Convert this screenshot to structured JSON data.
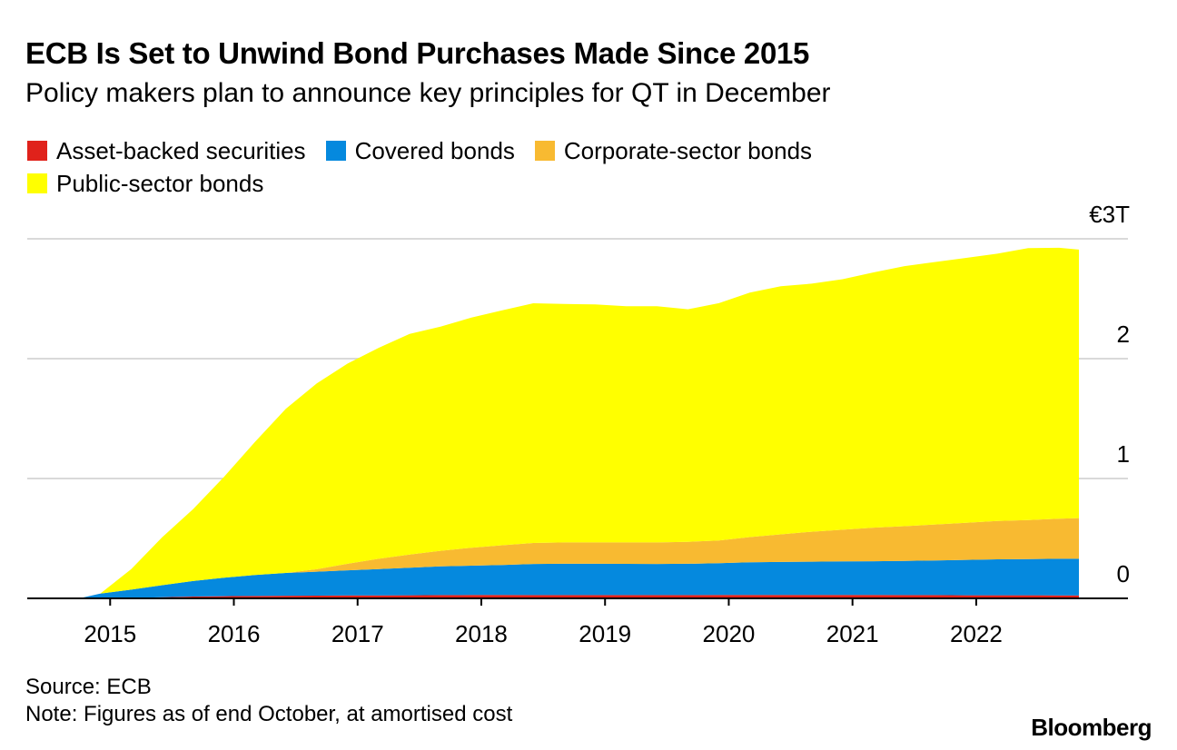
{
  "header": {
    "title": "ECB Is Set to Unwind Bond Purchases Made Since 2015",
    "subtitle": "Policy makers plan to announce key principles for QT in December"
  },
  "legend": {
    "items": [
      {
        "label": "Asset-backed securities",
        "color": "#e0221b"
      },
      {
        "label": "Covered bonds",
        "color": "#0589de"
      },
      {
        "label": "Corporate-sector bonds",
        "color": "#f8ba31"
      },
      {
        "label": "Public-sector bonds",
        "color": "#ffff00"
      }
    ]
  },
  "footer": {
    "source": "Source: ECB",
    "note": "Note: Figures as of end October, at amortised cost",
    "brand": "Bloomberg"
  },
  "chart_data": {
    "type": "area",
    "stacked": true,
    "title": "ECB Is Set to Unwind Bond Purchases Made Since 2015",
    "subtitle": "Policy makers plan to announce key principles for QT in December",
    "xlabel": "",
    "ylabel": "",
    "unit": "€ trillions",
    "ylim": [
      0,
      3
    ],
    "yticks": [
      0,
      1,
      2,
      3
    ],
    "ytick_labels": [
      "0",
      "1",
      "2",
      "€3T"
    ],
    "xticks": [
      2015,
      2016,
      2017,
      2018,
      2019,
      2020,
      2021,
      2022
    ],
    "xtick_labels": [
      "2015",
      "2016",
      "2017",
      "2018",
      "2019",
      "2020",
      "2021",
      "2022"
    ],
    "grid": true,
    "legend_position": "top-left",
    "x": [
      2014.75,
      2014.92,
      2015.17,
      2015.42,
      2015.67,
      2015.92,
      2016.17,
      2016.42,
      2016.67,
      2016.92,
      2017.17,
      2017.42,
      2017.67,
      2017.92,
      2018.17,
      2018.42,
      2018.67,
      2018.92,
      2019.17,
      2019.42,
      2019.67,
      2019.92,
      2020.17,
      2020.42,
      2020.67,
      2020.92,
      2021.17,
      2021.42,
      2021.67,
      2021.92,
      2022.17,
      2022.42,
      2022.67,
      2022.83
    ],
    "series": [
      {
        "name": "Asset-backed securities",
        "color": "#e0221b",
        "values": [
          0.0,
          0.0,
          0.003,
          0.01,
          0.015,
          0.018,
          0.02,
          0.022,
          0.023,
          0.024,
          0.025,
          0.026,
          0.027,
          0.028,
          0.028,
          0.027,
          0.027,
          0.027,
          0.027,
          0.027,
          0.027,
          0.028,
          0.029,
          0.029,
          0.028,
          0.028,
          0.028,
          0.027,
          0.027,
          0.026,
          0.026,
          0.026,
          0.025,
          0.025
        ]
      },
      {
        "name": "Covered bonds",
        "color": "#0589de",
        "values": [
          0.0,
          0.04,
          0.07,
          0.1,
          0.13,
          0.155,
          0.175,
          0.19,
          0.2,
          0.21,
          0.22,
          0.23,
          0.24,
          0.245,
          0.25,
          0.26,
          0.262,
          0.262,
          0.261,
          0.26,
          0.262,
          0.265,
          0.272,
          0.275,
          0.278,
          0.28,
          0.282,
          0.285,
          0.29,
          0.295,
          0.3,
          0.302,
          0.305,
          0.305
        ]
      },
      {
        "name": "Corporate-sector bonds",
        "color": "#f8ba31",
        "values": [
          0.0,
          0.0,
          0.0,
          0.0,
          0.0,
          0.0,
          0.0,
          0.0,
          0.02,
          0.055,
          0.085,
          0.11,
          0.13,
          0.15,
          0.165,
          0.175,
          0.178,
          0.178,
          0.179,
          0.18,
          0.183,
          0.19,
          0.21,
          0.23,
          0.25,
          0.265,
          0.28,
          0.29,
          0.3,
          0.31,
          0.32,
          0.325,
          0.335,
          0.34
        ]
      },
      {
        "name": "Public-sector bonds",
        "color": "#ffff00",
        "values": [
          0.0,
          0.0,
          0.17,
          0.4,
          0.6,
          0.84,
          1.11,
          1.37,
          1.55,
          1.67,
          1.76,
          1.84,
          1.87,
          1.92,
          1.96,
          2.0,
          1.99,
          1.985,
          1.97,
          1.97,
          1.94,
          1.98,
          2.04,
          2.07,
          2.07,
          2.09,
          2.13,
          2.17,
          2.19,
          2.21,
          2.23,
          2.27,
          2.26,
          2.24
        ]
      }
    ]
  }
}
